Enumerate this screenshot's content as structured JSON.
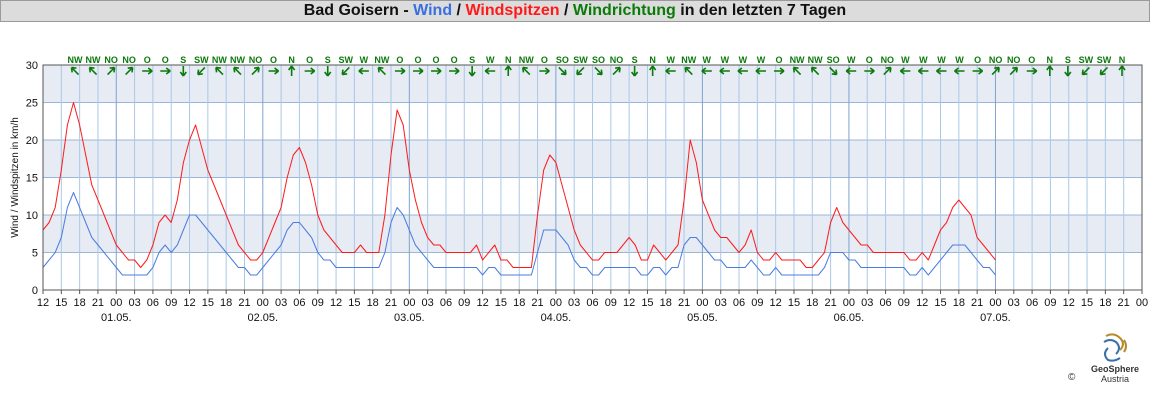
{
  "title": {
    "station": "Bad Goisern",
    "dash": " - ",
    "wind": "Wind",
    "slash1": " / ",
    "gusts": "Windspitzen",
    "slash2": " / ",
    "direction": "Windrichtung",
    "suffix": " in den letzten 7 Tagen"
  },
  "colors": {
    "wind": "#3a6fe0",
    "wind_line": "#4b7de0",
    "gusts": "#ff1a1a",
    "direction": "#0a7a0a",
    "band": "#e6ebf4",
    "vgrid": "#aac8e8",
    "hgrid": "#9bb7d6"
  },
  "logo": {
    "name": "GeoSphere",
    "country": "Austria",
    "copyright": "©"
  },
  "chart_data": {
    "type": "line",
    "ylabel": "Wind / Windspitzen in km/h",
    "ylim": [
      0,
      30
    ],
    "yticks": [
      0,
      5,
      10,
      15,
      20,
      25,
      30
    ],
    "x_unit": "hours since 30.04. 12:00",
    "x_range": [
      0,
      180
    ],
    "xtick_labels": [
      "12",
      "15",
      "18",
      "21",
      "00",
      "03",
      "06",
      "09",
      "12",
      "15",
      "18",
      "21",
      "00",
      "03",
      "06",
      "09",
      "12",
      "15",
      "18",
      "21",
      "00",
      "03",
      "06",
      "09",
      "12",
      "15",
      "18",
      "21",
      "00",
      "03",
      "06",
      "09",
      "12",
      "15",
      "18",
      "21",
      "00",
      "03",
      "06",
      "09",
      "12",
      "15",
      "18",
      "21",
      "00",
      "03",
      "06",
      "09",
      "12",
      "15",
      "18",
      "21",
      "00",
      "03",
      "06",
      "09",
      "12",
      "15",
      "18",
      "21",
      "00"
    ],
    "date_labels": [
      {
        "label": "01.05.",
        "hour": 12
      },
      {
        "label": "02.05.",
        "hour": 36
      },
      {
        "label": "03.05.",
        "hour": 60
      },
      {
        "label": "04.05.",
        "hour": 84
      },
      {
        "label": "05.05.",
        "hour": 108
      },
      {
        "label": "06.05.",
        "hour": 132
      },
      {
        "label": "07.05.",
        "hour": 156
      }
    ],
    "direction_labels": [
      "NW",
      "NW",
      "NO",
      "NO",
      "O",
      "O",
      "S",
      "SW",
      "NW",
      "NW",
      "NO",
      "O",
      "N",
      "O",
      "S",
      "SW",
      "W",
      "NW",
      "O",
      "O",
      "O",
      "O",
      "S",
      "W",
      "N",
      "NW",
      "O",
      "SO",
      "SW",
      "SO",
      "NO",
      "S",
      "N",
      "W",
      "NW",
      "W",
      "W",
      "W",
      "W",
      "O",
      "NW",
      "NW",
      "SO",
      "W",
      "O",
      "NO",
      "W",
      "W",
      "W",
      "W",
      "O",
      "NO",
      "NO",
      "O",
      "N",
      "S",
      "SW",
      "SW",
      "N"
    ],
    "direction_angles": [
      315,
      315,
      45,
      45,
      90,
      90,
      180,
      225,
      315,
      315,
      45,
      90,
      0,
      90,
      180,
      225,
      270,
      315,
      90,
      90,
      90,
      90,
      180,
      270,
      0,
      315,
      90,
      135,
      225,
      135,
      45,
      180,
      0,
      270,
      315,
      270,
      270,
      270,
      270,
      90,
      315,
      315,
      135,
      270,
      90,
      45,
      270,
      270,
      270,
      270,
      90,
      45,
      45,
      90,
      0,
      180,
      225,
      225,
      0
    ],
    "series": [
      {
        "name": "Windspitzen",
        "color": "#ff1a1a",
        "x_start": 0,
        "x_step": 1,
        "values": [
          8,
          9,
          11,
          16,
          22,
          25,
          22,
          18,
          14,
          12,
          10,
          8,
          6,
          5,
          4,
          4,
          3,
          4,
          6,
          9,
          10,
          9,
          12,
          17,
          20,
          22,
          19,
          16,
          14,
          12,
          10,
          8,
          6,
          5,
          4,
          4,
          5,
          7,
          9,
          11,
          15,
          18,
          19,
          17,
          14,
          10,
          8,
          7,
          6,
          5,
          5,
          5,
          6,
          5,
          5,
          5,
          10,
          18,
          24,
          22,
          16,
          12,
          9,
          7,
          6,
          6,
          5,
          5,
          5,
          5,
          5,
          6,
          4,
          5,
          6,
          4,
          4,
          3,
          3,
          3,
          3,
          10,
          16,
          18,
          17,
          14,
          11,
          8,
          6,
          5,
          4,
          4,
          5,
          5,
          5,
          6,
          7,
          6,
          4,
          4,
          6,
          5,
          4,
          5,
          6,
          12,
          20,
          17,
          12,
          10,
          8,
          7,
          7,
          6,
          5,
          6,
          8,
          5,
          4,
          4,
          5,
          4,
          4,
          4,
          4,
          3,
          3,
          4,
          5,
          9,
          11,
          9,
          8,
          7,
          6,
          6,
          5,
          5,
          5,
          5,
          5,
          5,
          4,
          4,
          5,
          4,
          6,
          8,
          9,
          11,
          12,
          11,
          10,
          7,
          6,
          5,
          4
        ]
      },
      {
        "name": "Wind",
        "color": "#4b7de0",
        "x_start": 0,
        "x_step": 1,
        "values": [
          3,
          4,
          5,
          7,
          11,
          13,
          11,
          9,
          7,
          6,
          5,
          4,
          3,
          2,
          2,
          2,
          2,
          2,
          3,
          5,
          6,
          5,
          6,
          8,
          10,
          10,
          9,
          8,
          7,
          6,
          5,
          4,
          3,
          3,
          2,
          2,
          3,
          4,
          5,
          6,
          8,
          9,
          9,
          8,
          7,
          5,
          4,
          4,
          3,
          3,
          3,
          3,
          3,
          3,
          3,
          3,
          5,
          9,
          11,
          10,
          8,
          6,
          5,
          4,
          3,
          3,
          3,
          3,
          3,
          3,
          3,
          3,
          2,
          3,
          3,
          2,
          2,
          2,
          2,
          2,
          2,
          5,
          8,
          8,
          8,
          7,
          6,
          4,
          3,
          3,
          2,
          2,
          3,
          3,
          3,
          3,
          3,
          3,
          2,
          2,
          3,
          3,
          2,
          3,
          3,
          6,
          7,
          7,
          6,
          5,
          4,
          4,
          3,
          3,
          3,
          3,
          4,
          3,
          2,
          2,
          3,
          2,
          2,
          2,
          2,
          2,
          2,
          2,
          3,
          5,
          5,
          5,
          4,
          4,
          3,
          3,
          3,
          3,
          3,
          3,
          3,
          3,
          2,
          2,
          3,
          2,
          3,
          4,
          5,
          6,
          6,
          6,
          5,
          4,
          3,
          3,
          2
        ]
      }
    ]
  }
}
